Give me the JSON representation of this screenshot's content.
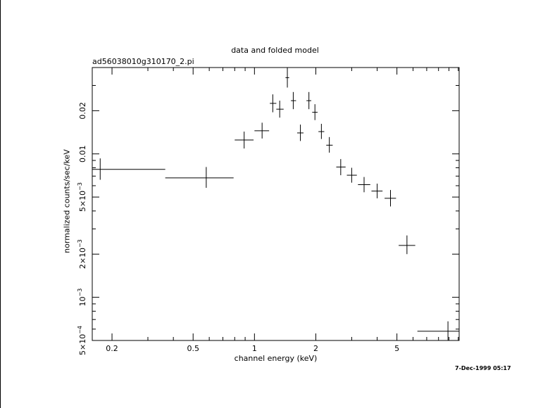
{
  "chart_data": {
    "type": "scatter",
    "title": "data and folded model",
    "subtitle": "ad56038010g310170_2.pi",
    "xlabel": "channel energy (keV)",
    "ylabel": "normalized counts/sec/keV",
    "x_scale": "log",
    "y_scale": "log",
    "xlim": [
      0.16,
      10.1
    ],
    "ylim": [
      0.0005,
      0.04
    ],
    "x_ticks": [
      {
        "value": 0.2,
        "label": "0.2"
      },
      {
        "value": 0.5,
        "label": "0.5"
      },
      {
        "value": 1,
        "label": "1"
      },
      {
        "value": 2,
        "label": "2"
      },
      {
        "value": 5,
        "label": "5"
      }
    ],
    "y_ticks": [
      {
        "value": 0.0005,
        "mant": "5×10",
        "exp": "−4"
      },
      {
        "value": 0.001,
        "mant": "10",
        "exp": "−3"
      },
      {
        "value": 0.002,
        "mant": "2×10",
        "exp": "−3"
      },
      {
        "value": 0.005,
        "mant": "5×10",
        "exp": "−3"
      },
      {
        "value": 0.01,
        "mant": "0.01",
        "exp": ""
      },
      {
        "value": 0.02,
        "mant": "0.02",
        "exp": ""
      }
    ],
    "grid": false,
    "points": [
      {
        "x": 0.175,
        "xlo": 0.16,
        "xhi": 0.365,
        "y": 0.0078,
        "ylo": 0.0066,
        "yhi": 0.0093
      },
      {
        "x": 0.58,
        "xlo": 0.365,
        "xhi": 0.79,
        "y": 0.0068,
        "ylo": 0.0058,
        "yhi": 0.0081
      },
      {
        "x": 0.89,
        "xlo": 0.8,
        "xhi": 0.99,
        "y": 0.0125,
        "ylo": 0.0109,
        "yhi": 0.0143
      },
      {
        "x": 1.09,
        "xlo": 1.0,
        "xhi": 1.18,
        "y": 0.0145,
        "ylo": 0.0128,
        "yhi": 0.0165
      },
      {
        "x": 1.23,
        "xlo": 1.19,
        "xhi": 1.28,
        "y": 0.0225,
        "ylo": 0.0195,
        "yhi": 0.026
      },
      {
        "x": 1.33,
        "xlo": 1.28,
        "xhi": 1.39,
        "y": 0.0205,
        "ylo": 0.0179,
        "yhi": 0.0235
      },
      {
        "x": 1.45,
        "xlo": 1.42,
        "xhi": 1.48,
        "y": 0.034,
        "ylo": 0.029,
        "yhi": 0.04
      },
      {
        "x": 1.55,
        "xlo": 1.51,
        "xhi": 1.6,
        "y": 0.0235,
        "ylo": 0.0205,
        "yhi": 0.027
      },
      {
        "x": 1.68,
        "xlo": 1.62,
        "xhi": 1.74,
        "y": 0.014,
        "ylo": 0.0123,
        "yhi": 0.016
      },
      {
        "x": 1.85,
        "xlo": 1.8,
        "xhi": 1.9,
        "y": 0.0235,
        "ylo": 0.0205,
        "yhi": 0.027
      },
      {
        "x": 1.98,
        "xlo": 1.92,
        "xhi": 2.04,
        "y": 0.0195,
        "ylo": 0.0172,
        "yhi": 0.0222
      },
      {
        "x": 2.13,
        "xlo": 2.06,
        "xhi": 2.2,
        "y": 0.0143,
        "ylo": 0.0127,
        "yhi": 0.0162
      },
      {
        "x": 2.33,
        "xlo": 2.25,
        "xhi": 2.42,
        "y": 0.0115,
        "ylo": 0.0102,
        "yhi": 0.0131
      },
      {
        "x": 2.65,
        "xlo": 2.52,
        "xhi": 2.8,
        "y": 0.0081,
        "ylo": 0.0071,
        "yhi": 0.0092
      },
      {
        "x": 3.0,
        "xlo": 2.84,
        "xhi": 3.18,
        "y": 0.0071,
        "ylo": 0.0063,
        "yhi": 0.008
      },
      {
        "x": 3.45,
        "xlo": 3.22,
        "xhi": 3.7,
        "y": 0.0061,
        "ylo": 0.0054,
        "yhi": 0.0069
      },
      {
        "x": 4.0,
        "xlo": 3.75,
        "xhi": 4.25,
        "y": 0.0055,
        "ylo": 0.0049,
        "yhi": 0.0062
      },
      {
        "x": 4.65,
        "xlo": 4.35,
        "xhi": 4.95,
        "y": 0.0049,
        "ylo": 0.0043,
        "yhi": 0.0056
      },
      {
        "x": 5.6,
        "xlo": 5.1,
        "xhi": 6.15,
        "y": 0.0023,
        "ylo": 0.002,
        "yhi": 0.0027
      },
      {
        "x": 8.9,
        "xlo": 6.3,
        "xhi": 10.1,
        "y": 0.00058,
        "ylo": 0.0005,
        "yhi": 0.00068
      }
    ]
  },
  "timestamp": "7-Dec-1999 05:17"
}
